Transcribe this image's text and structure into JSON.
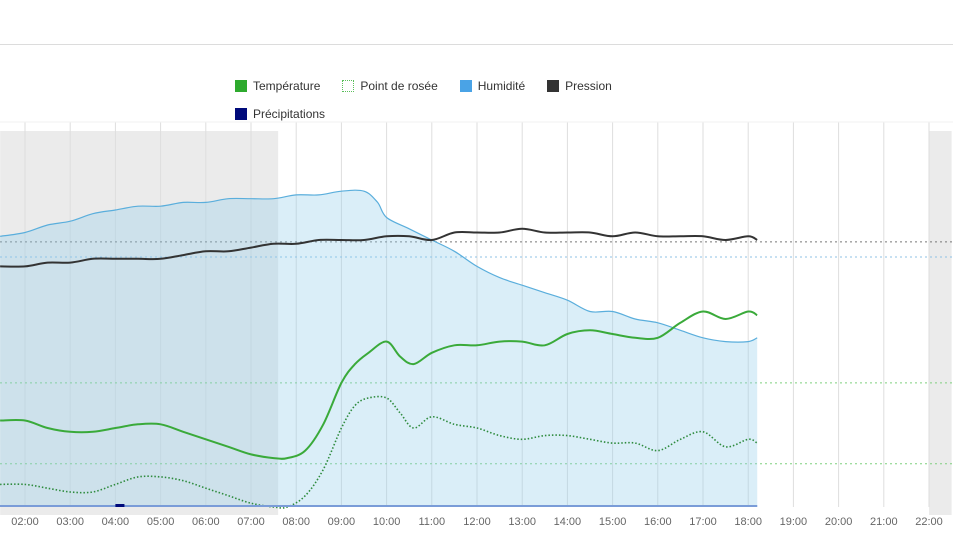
{
  "legend": [
    {
      "label": "Température",
      "color": "#2eaa2e",
      "style": "solid"
    },
    {
      "label": "Point de rosée",
      "color": "#2eaa2e",
      "style": "dotted"
    },
    {
      "label": "Humidité",
      "color": "#4aa3e6",
      "style": "solid"
    },
    {
      "label": "Pression",
      "color": "#333333",
      "style": "solid"
    },
    {
      "label": "Précipitations",
      "color": "#000a7a",
      "style": "solid"
    }
  ],
  "chart_data": {
    "type": "line",
    "title": "",
    "xlabel": "",
    "ylabel": "",
    "x_ticks": [
      "02:00",
      "03:00",
      "04:00",
      "05:00",
      "06:00",
      "07:00",
      "08:00",
      "09:00",
      "10:00",
      "11:00",
      "12:00",
      "13:00",
      "14:00",
      "15:00",
      "16:00",
      "17:00",
      "18:00",
      "19:00",
      "20:00",
      "21:00",
      "22:00"
    ],
    "xlim": [
      1.45,
      22.5
    ],
    "ylim": [
      0,
      100
    ],
    "grid": "vertical",
    "night_bands": [
      [
        1.45,
        7.6
      ],
      [
        22.0,
        22.5
      ]
    ],
    "reference_lines": [
      {
        "series": "Pression",
        "y": 70.5
      },
      {
        "series": "Humidité",
        "y": 66.5
      },
      {
        "series": "Température",
        "y": 33.0
      },
      {
        "series": "Point de rosée",
        "y": 11.5
      }
    ],
    "series": [
      {
        "name": "Humidité",
        "x": [
          1.45,
          2.0,
          2.5,
          3.0,
          3.5,
          4.0,
          4.5,
          5.0,
          5.5,
          6.0,
          6.5,
          7.0,
          7.5,
          8.0,
          8.5,
          9.0,
          9.5,
          9.8,
          10.0,
          10.5,
          11.0,
          11.5,
          12.0,
          12.5,
          13.0,
          13.5,
          14.0,
          14.5,
          15.0,
          15.5,
          16.0,
          16.5,
          17.0,
          17.5,
          18.0,
          18.2
        ],
        "y": [
          72,
          73,
          75,
          76,
          78,
          79,
          80,
          80,
          81,
          81,
          82,
          82,
          82,
          83,
          83,
          84,
          84,
          81,
          77,
          74,
          71,
          68,
          64,
          61,
          59,
          57,
          55,
          52,
          52,
          50,
          49,
          47,
          45,
          44,
          44,
          45
        ]
      },
      {
        "name": "Pression",
        "x": [
          1.45,
          2.0,
          2.5,
          3.0,
          3.5,
          4.0,
          4.5,
          5.0,
          5.5,
          6.0,
          6.5,
          7.0,
          7.5,
          8.0,
          8.5,
          9.0,
          9.5,
          10.0,
          10.5,
          11.0,
          11.5,
          12.0,
          12.5,
          13.0,
          13.5,
          14.0,
          14.5,
          15.0,
          15.5,
          16.0,
          16.5,
          17.0,
          17.5,
          18.0,
          18.2
        ],
        "y": [
          64,
          64,
          65,
          65,
          66,
          66,
          66,
          66,
          67,
          68,
          68,
          69,
          70,
          70,
          71,
          71,
          71,
          72,
          72,
          71,
          73,
          73,
          73,
          74,
          73,
          73,
          73,
          72,
          73,
          72,
          72,
          72,
          71,
          72,
          71
        ]
      },
      {
        "name": "Température",
        "x": [
          1.45,
          2.0,
          2.5,
          3.0,
          3.5,
          4.0,
          4.5,
          5.0,
          5.5,
          6.0,
          6.5,
          7.0,
          7.5,
          7.8,
          8.2,
          8.6,
          9.0,
          9.3,
          9.6,
          10.0,
          10.3,
          10.6,
          11.0,
          11.5,
          12.0,
          12.5,
          13.0,
          13.5,
          14.0,
          14.5,
          15.0,
          15.5,
          16.0,
          16.5,
          17.0,
          17.5,
          18.0,
          18.2
        ],
        "y": [
          23,
          23,
          21,
          20,
          20,
          21,
          22,
          22,
          20,
          18,
          16,
          14,
          13,
          13,
          15,
          22,
          33,
          38,
          41,
          44,
          40,
          38,
          41,
          43,
          43,
          44,
          44,
          43,
          46,
          47,
          46,
          45,
          45,
          49,
          52,
          50,
          52,
          51
        ]
      },
      {
        "name": "Point de rosée",
        "x": [
          1.45,
          2.0,
          2.5,
          3.0,
          3.5,
          4.0,
          4.5,
          5.0,
          5.5,
          6.0,
          6.5,
          7.0,
          7.5,
          7.8,
          8.2,
          8.6,
          9.0,
          9.3,
          9.6,
          10.0,
          10.3,
          10.6,
          11.0,
          11.5,
          12.0,
          12.5,
          13.0,
          13.5,
          14.0,
          14.5,
          15.0,
          15.5,
          16.0,
          16.5,
          17.0,
          17.5,
          18.0,
          18.2
        ],
        "y": [
          6,
          6,
          5,
          4,
          4,
          6,
          8,
          8,
          7,
          5,
          3,
          1,
          0,
          0,
          3,
          10,
          21,
          27,
          29,
          29,
          25,
          21,
          24,
          22,
          21,
          19,
          18,
          19,
          19,
          18,
          17,
          17,
          15,
          18,
          20,
          16,
          18,
          17
        ]
      },
      {
        "name": "Précipitations",
        "x": [
          4.0,
          4.2
        ],
        "y": [
          0.5,
          0.5
        ]
      }
    ]
  }
}
